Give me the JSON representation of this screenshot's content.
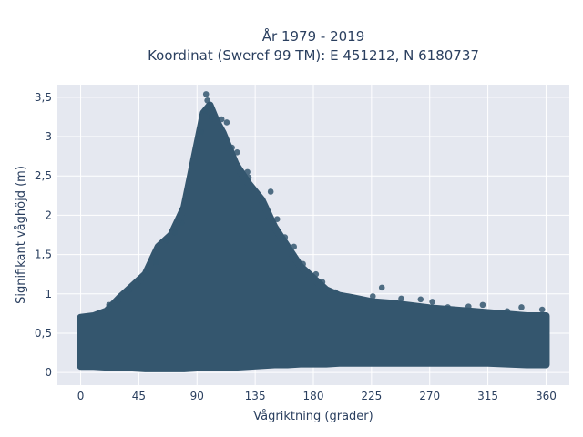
{
  "chart_data": {
    "type": "scatter",
    "title_line1": "År 1979 - 2019",
    "title_line2": "Koordinat (Sweref 99 TM): E 451212, N 6180737",
    "xlabel": "Vågriktning (grader)",
    "ylabel": "Signifikant våghöjd (m)",
    "xlim": [
      -18,
      378
    ],
    "ylim": [
      -0.16,
      3.66
    ],
    "xticks": [
      0,
      45,
      90,
      135,
      180,
      225,
      270,
      315,
      360
    ],
    "xtick_labels": [
      "0",
      "45",
      "90",
      "135",
      "180",
      "225",
      "270",
      "315",
      "360"
    ],
    "yticks": [
      0,
      0.5,
      1,
      1.5,
      2,
      2.5,
      3,
      3.5
    ],
    "ytick_labels": [
      "0",
      "0,5",
      "1",
      "1,5",
      "2",
      "2,5",
      "3",
      "3,5"
    ],
    "grid": true,
    "marker_color": "#34566e",
    "plot_background": "#e5e8f0",
    "envelope": {
      "x": [
        0,
        10,
        20,
        30,
        40,
        50,
        60,
        70,
        80,
        90,
        95,
        100,
        105,
        110,
        115,
        120,
        130,
        140,
        150,
        160,
        170,
        180,
        190,
        200,
        210,
        225,
        240,
        255,
        270,
        285,
        300,
        315,
        330,
        345,
        360
      ],
      "y_min": [
        0.08,
        0.08,
        0.07,
        0.07,
        0.06,
        0.05,
        0.05,
        0.05,
        0.05,
        0.06,
        0.06,
        0.06,
        0.06,
        0.06,
        0.07,
        0.07,
        0.08,
        0.09,
        0.1,
        0.1,
        0.11,
        0.11,
        0.11,
        0.12,
        0.12,
        0.12,
        0.12,
        0.12,
        0.12,
        0.12,
        0.12,
        0.12,
        0.11,
        0.1,
        0.1
      ],
      "y_max": [
        0.7,
        0.72,
        0.78,
        0.95,
        1.1,
        1.25,
        1.6,
        1.75,
        2.1,
        2.9,
        3.3,
        3.4,
        3.2,
        3.05,
        2.85,
        2.65,
        2.4,
        2.2,
        1.85,
        1.6,
        1.35,
        1.2,
        1.05,
        0.98,
        0.95,
        0.9,
        0.88,
        0.85,
        0.82,
        0.8,
        0.78,
        0.76,
        0.74,
        0.72,
        0.72
      ]
    },
    "outliers": [
      {
        "x": 97,
        "y": 3.54
      },
      {
        "x": 98,
        "y": 3.46
      },
      {
        "x": 96,
        "y": 3.33
      },
      {
        "x": 101,
        "y": 3.25
      },
      {
        "x": 109,
        "y": 3.22
      },
      {
        "x": 113,
        "y": 3.18
      },
      {
        "x": 93,
        "y": 3.06
      },
      {
        "x": 117,
        "y": 2.86
      },
      {
        "x": 121,
        "y": 2.8
      },
      {
        "x": 129,
        "y": 2.55
      },
      {
        "x": 130,
        "y": 2.48
      },
      {
        "x": 141,
        "y": 2.15
      },
      {
        "x": 147,
        "y": 2.3
      },
      {
        "x": 152,
        "y": 1.95
      },
      {
        "x": 158,
        "y": 1.72
      },
      {
        "x": 165,
        "y": 1.6
      },
      {
        "x": 172,
        "y": 1.38
      },
      {
        "x": 182,
        "y": 1.25
      },
      {
        "x": 187,
        "y": 1.15
      },
      {
        "x": 197,
        "y": 1.02
      },
      {
        "x": 226,
        "y": 0.97
      },
      {
        "x": 233,
        "y": 1.08
      },
      {
        "x": 248,
        "y": 0.94
      },
      {
        "x": 263,
        "y": 0.93
      },
      {
        "x": 272,
        "y": 0.9
      },
      {
        "x": 284,
        "y": 0.83
      },
      {
        "x": 300,
        "y": 0.84
      },
      {
        "x": 311,
        "y": 0.86
      },
      {
        "x": 330,
        "y": 0.78
      },
      {
        "x": 341,
        "y": 0.83
      },
      {
        "x": 357,
        "y": 0.8
      },
      {
        "x": 78,
        "y": 1.9
      },
      {
        "x": 73,
        "y": 1.78
      },
      {
        "x": 66,
        "y": 1.68
      },
      {
        "x": 58,
        "y": 1.4
      },
      {
        "x": 51,
        "y": 1.27
      },
      {
        "x": 44,
        "y": 1.12
      },
      {
        "x": 37,
        "y": 1.05
      },
      {
        "x": 29,
        "y": 0.92
      },
      {
        "x": 22,
        "y": 0.86
      },
      {
        "x": 8,
        "y": 0.72
      },
      {
        "x": 2,
        "y": 0.71
      }
    ]
  }
}
